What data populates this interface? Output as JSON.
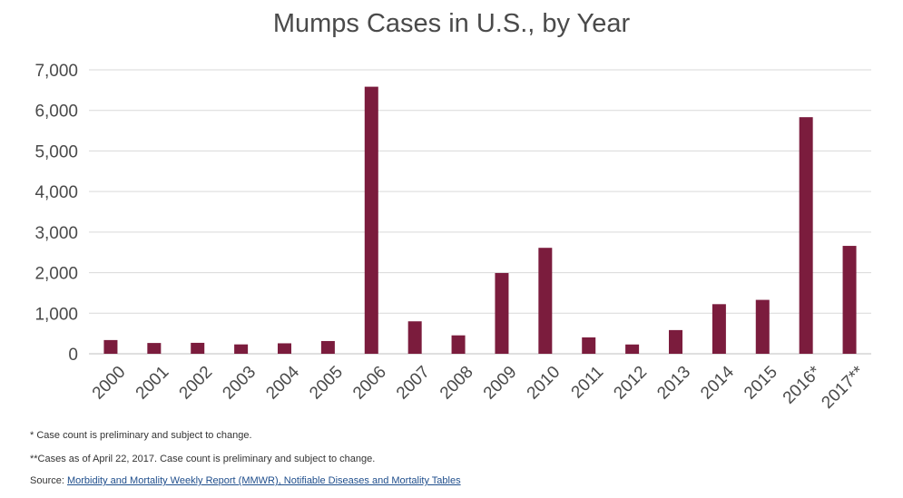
{
  "chart_data": {
    "type": "bar",
    "title": "Mumps Cases in U.S., by Year",
    "xlabel": "",
    "ylabel": "",
    "categories": [
      "2000",
      "2001",
      "2002",
      "2003",
      "2004",
      "2005",
      "2006",
      "2007",
      "2008",
      "2009",
      "2010",
      "2011",
      "2012",
      "2013",
      "2014",
      "2015",
      "2016*",
      "2017**"
    ],
    "values": [
      338,
      266,
      270,
      231,
      258,
      314,
      6584,
      800,
      454,
      1991,
      2612,
      404,
      229,
      584,
      1223,
      1329,
      5833,
      2660
    ],
    "ylim": [
      0,
      7000
    ],
    "yticks": [
      0,
      1000,
      2000,
      3000,
      4000,
      5000,
      6000,
      7000
    ],
    "ytick_labels": [
      "0",
      "1,000",
      "2,000",
      "3,000",
      "4,000",
      "5,000",
      "6,000",
      "7,000"
    ],
    "grid": true,
    "legend": "none",
    "bar_color": "#7b1c3d"
  },
  "footnotes": {
    "note1": "* Case count is preliminary and subject to change.",
    "note2": "**Cases as of April 22, 2017. Case count is preliminary and subject to change.",
    "source_prefix": "Source: ",
    "source_link_text": "Morbidity and Mortality Weekly Report (MMWR), Notifiable Diseases and Mortality Tables"
  }
}
